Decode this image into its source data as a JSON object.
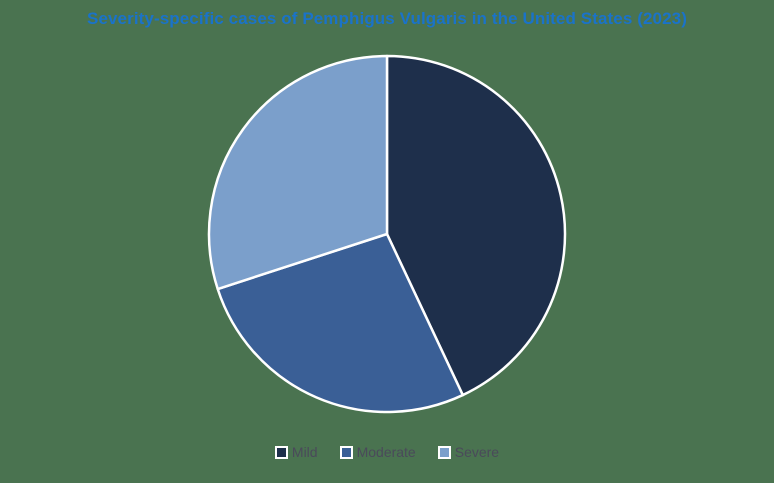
{
  "chart_data": {
    "type": "pie",
    "title": "Severity-specific cases of Pemphigus Vulgaris in the United States (2023)",
    "categories": [
      "Mild",
      "Moderate",
      "Severe"
    ],
    "values": [
      43,
      27,
      30
    ],
    "unit": "%",
    "colors": [
      "#1e2f4b",
      "#3a5f96",
      "#7b9fcb"
    ],
    "start_angle_deg": 0,
    "direction": "clockwise",
    "legend_position": "bottom",
    "data_labels": false
  },
  "legend": {
    "items": [
      {
        "label": "Mild",
        "color": "#1e2f4b"
      },
      {
        "label": "Moderate",
        "color": "#3a5f96"
      },
      {
        "label": "Severe",
        "color": "#7b9fcb"
      }
    ]
  }
}
